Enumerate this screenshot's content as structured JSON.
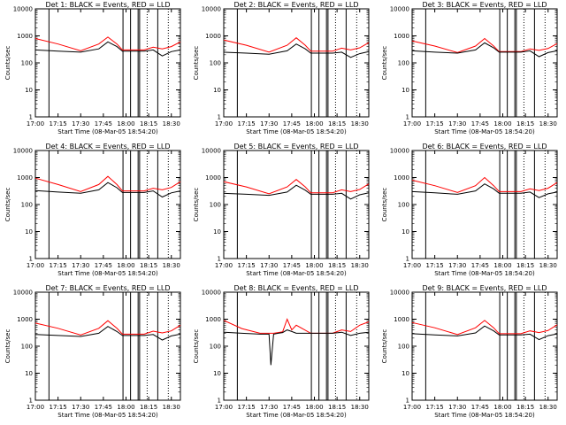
{
  "chart_data": [
    {
      "type": "line",
      "title": "Det 1: BLACK = Events, RED = LLD",
      "xlabel": "Start Time (08-Mar-05 18:54:20)",
      "ylabel": "Counts/sec",
      "y_scale": "log",
      "ylim": [
        1,
        10000
      ],
      "xlim": [
        "17:00",
        "18:36"
      ],
      "x_ticks": [
        "17:00",
        "17:15",
        "17:30",
        "17:45",
        "18:00",
        "18:15",
        "18:30"
      ],
      "y_ticks": [
        "1",
        "10",
        "100",
        "1000",
        "10000"
      ],
      "solid_markers": [
        "17:09",
        "17:58",
        "18:03",
        "18:08",
        "18:09",
        "18:21"
      ],
      "dotted_markers": [
        "18:14",
        "18:28"
      ],
      "x": [
        17.0,
        17.25,
        17.5,
        17.7,
        17.8,
        17.9,
        17.96,
        18.2,
        18.3,
        18.4,
        18.5,
        18.6
      ],
      "series": [
        {
          "name": "BLACK",
          "color": "#000000",
          "values": [
            300,
            270,
            250,
            330,
            600,
            400,
            270,
            270,
            300,
            180,
            260,
            300
          ]
        },
        {
          "name": "RED",
          "color": "#ff0000",
          "values": [
            800,
            500,
            280,
            500,
            900,
            500,
            300,
            300,
            380,
            330,
            400,
            600
          ]
        }
      ]
    },
    {
      "type": "line",
      "title": "Det 2: BLACK = Events, RED = LLD",
      "xlabel": "Start Time (08-Mar-05 18:54:20)",
      "ylabel": "Counts/sec",
      "y_scale": "log",
      "ylim": [
        1,
        10000
      ],
      "xlim": [
        "17:00",
        "18:36"
      ],
      "x_ticks": [
        "17:00",
        "17:15",
        "17:30",
        "17:45",
        "18:00",
        "18:15",
        "18:30"
      ],
      "y_ticks": [
        "1",
        "10",
        "100",
        "1000",
        "10000"
      ],
      "solid_markers": [
        "17:09",
        "17:58",
        "18:03",
        "18:08",
        "18:09",
        "18:21"
      ],
      "dotted_markers": [
        "18:14",
        "18:28"
      ],
      "x": [
        17.0,
        17.25,
        17.5,
        17.7,
        17.8,
        17.9,
        17.96,
        18.2,
        18.3,
        18.4,
        18.5,
        18.6
      ],
      "series": [
        {
          "name": "BLACK",
          "color": "#000000",
          "values": [
            250,
            230,
            210,
            280,
            500,
            330,
            230,
            230,
            250,
            160,
            220,
            260
          ]
        },
        {
          "name": "RED",
          "color": "#ff0000",
          "values": [
            700,
            450,
            250,
            450,
            850,
            450,
            270,
            270,
            350,
            300,
            360,
            560
          ]
        }
      ]
    },
    {
      "type": "line",
      "title": "Det 3: BLACK = Events, RED = LLD",
      "xlabel": "Start Time (08-Mar-05 18:54:20)",
      "ylabel": "Counts/sec",
      "y_scale": "log",
      "ylim": [
        1,
        10000
      ],
      "xlim": [
        "17:00",
        "18:36"
      ],
      "x_ticks": [
        "17:00",
        "17:15",
        "17:30",
        "17:45",
        "18:00",
        "18:15",
        "18:30"
      ],
      "y_ticks": [
        "1",
        "10",
        "100",
        "1000",
        "10000"
      ],
      "solid_markers": [
        "17:09",
        "17:58",
        "18:03",
        "18:08",
        "18:09",
        "18:21"
      ],
      "dotted_markers": [
        "18:14",
        "18:28"
      ],
      "x": [
        17.0,
        17.25,
        17.5,
        17.7,
        17.8,
        17.9,
        17.96,
        18.2,
        18.3,
        18.4,
        18.5,
        18.6
      ],
      "series": [
        {
          "name": "BLACK",
          "color": "#000000",
          "values": [
            280,
            250,
            230,
            300,
            550,
            360,
            250,
            250,
            280,
            170,
            240,
            280
          ]
        },
        {
          "name": "RED",
          "color": "#ff0000",
          "values": [
            650,
            420,
            240,
            420,
            800,
            420,
            260,
            260,
            330,
            290,
            340,
            520
          ]
        }
      ]
    },
    {
      "type": "line",
      "title": "Det 4: BLACK = Events, RED = LLD",
      "xlabel": "Start Time (08-Mar-05 18:54:20)",
      "ylabel": "Counts/sec",
      "y_scale": "log",
      "ylim": [
        1,
        10000
      ],
      "xlim": [
        "17:00",
        "18:36"
      ],
      "x_ticks": [
        "17:00",
        "17:15",
        "17:30",
        "17:45",
        "18:00",
        "18:15",
        "18:30"
      ],
      "y_ticks": [
        "1",
        "10",
        "100",
        "1000",
        "10000"
      ],
      "solid_markers": [
        "17:09",
        "17:58",
        "18:03",
        "18:08",
        "18:09",
        "18:21"
      ],
      "dotted_markers": [
        "18:14",
        "18:28"
      ],
      "x": [
        17.0,
        17.25,
        17.5,
        17.7,
        17.8,
        17.9,
        17.96,
        18.2,
        18.3,
        18.4,
        18.5,
        18.6
      ],
      "series": [
        {
          "name": "BLACK",
          "color": "#000000",
          "values": [
            330,
            290,
            260,
            350,
            650,
            420,
            280,
            280,
            320,
            190,
            270,
            320
          ]
        },
        {
          "name": "RED",
          "color": "#ff0000",
          "values": [
            950,
            550,
            300,
            550,
            1100,
            550,
            320,
            320,
            400,
            350,
            430,
            700
          ]
        }
      ]
    },
    {
      "type": "line",
      "title": "Det 5: BLACK = Events, RED = LLD",
      "xlabel": "Start Time (08-Mar-05 18:54:20)",
      "ylabel": "Counts/sec",
      "y_scale": "log",
      "ylim": [
        1,
        10000
      ],
      "xlim": [
        "17:00",
        "18:36"
      ],
      "x_ticks": [
        "17:00",
        "17:15",
        "17:30",
        "17:45",
        "18:00",
        "18:15",
        "18:30"
      ],
      "y_ticks": [
        "1",
        "10",
        "100",
        "1000",
        "10000"
      ],
      "solid_markers": [
        "17:09",
        "17:58",
        "18:03",
        "18:08",
        "18:09",
        "18:21"
      ],
      "dotted_markers": [
        "18:14",
        "18:28"
      ],
      "x": [
        17.0,
        17.25,
        17.5,
        17.7,
        17.8,
        17.9,
        17.96,
        18.2,
        18.3,
        18.4,
        18.5,
        18.6
      ],
      "series": [
        {
          "name": "BLACK",
          "color": "#000000",
          "values": [
            260,
            240,
            220,
            290,
            520,
            340,
            240,
            240,
            260,
            160,
            230,
            270
          ]
        },
        {
          "name": "RED",
          "color": "#ff0000",
          "values": [
            700,
            450,
            250,
            450,
            850,
            450,
            270,
            270,
            350,
            300,
            360,
            580
          ]
        }
      ]
    },
    {
      "type": "line",
      "title": "Det 6: BLACK = Events, RED = LLD",
      "xlabel": "Start Time (08-Mar-05 18:54:20)",
      "ylabel": "Counts/sec",
      "y_scale": "log",
      "ylim": [
        1,
        10000
      ],
      "xlim": [
        "17:00",
        "18:36"
      ],
      "x_ticks": [
        "17:00",
        "17:15",
        "17:30",
        "17:45",
        "18:00",
        "18:15",
        "18:30"
      ],
      "y_ticks": [
        "1",
        "10",
        "100",
        "1000",
        "10000"
      ],
      "solid_markers": [
        "17:09",
        "17:58",
        "18:03",
        "18:08",
        "18:09",
        "18:21"
      ],
      "dotted_markers": [
        "18:14",
        "18:28"
      ],
      "x": [
        17.0,
        17.25,
        17.5,
        17.7,
        17.8,
        17.9,
        17.96,
        18.2,
        18.3,
        18.4,
        18.5,
        18.6
      ],
      "series": [
        {
          "name": "BLACK",
          "color": "#000000",
          "values": [
            300,
            270,
            240,
            320,
            580,
            380,
            260,
            260,
            290,
            180,
            250,
            290
          ]
        },
        {
          "name": "RED",
          "color": "#ff0000",
          "values": [
            800,
            500,
            280,
            500,
            1000,
            500,
            300,
            300,
            380,
            330,
            400,
            650
          ]
        }
      ]
    },
    {
      "type": "line",
      "title": "Det 7: BLACK = Events, RED = LLD",
      "xlabel": "Start Time (08-Mar-05 18:54:20)",
      "ylabel": "Counts/sec",
      "y_scale": "log",
      "ylim": [
        1,
        10000
      ],
      "xlim": [
        "17:00",
        "18:36"
      ],
      "x_ticks": [
        "17:00",
        "17:15",
        "17:30",
        "17:45",
        "18:00",
        "18:15",
        "18:30"
      ],
      "y_ticks": [
        "1",
        "10",
        "100",
        "1000",
        "10000"
      ],
      "solid_markers": [
        "17:09",
        "17:58",
        "18:03",
        "18:08",
        "18:09",
        "18:21"
      ],
      "dotted_markers": [
        "18:14",
        "18:28"
      ],
      "x": [
        17.0,
        17.25,
        17.5,
        17.7,
        17.8,
        17.9,
        17.96,
        18.2,
        18.3,
        18.4,
        18.5,
        18.6
      ],
      "series": [
        {
          "name": "BLACK",
          "color": "#000000",
          "values": [
            270,
            250,
            230,
            300,
            540,
            350,
            250,
            250,
            270,
            170,
            240,
            280
          ]
        },
        {
          "name": "RED",
          "color": "#ff0000",
          "values": [
            720,
            460,
            260,
            460,
            880,
            460,
            280,
            280,
            360,
            310,
            370,
            600
          ]
        }
      ]
    },
    {
      "type": "line",
      "title": "Det 8: BLACK = Events, RED = LLD",
      "xlabel": "Start Time (08-Mar-05 18:54:20)",
      "ylabel": "Counts/sec",
      "y_scale": "log",
      "ylim": [
        1,
        10000
      ],
      "xlim": [
        "17:00",
        "18:36"
      ],
      "x_ticks": [
        "17:00",
        "17:15",
        "17:30",
        "17:45",
        "18:00",
        "18:15",
        "18:30"
      ],
      "y_ticks": [
        "1",
        "10",
        "100",
        "1000",
        "10000"
      ],
      "solid_markers": [
        "17:09",
        "17:58",
        "18:03",
        "18:08",
        "18:09",
        "18:21"
      ],
      "dotted_markers": [
        "18:14",
        "18:28"
      ],
      "x": [
        17.0,
        17.2,
        17.4,
        17.5,
        17.52,
        17.55,
        17.6,
        17.65,
        17.7,
        17.75,
        17.8,
        17.96,
        18.2,
        18.3,
        18.4,
        18.5,
        18.6
      ],
      "series": [
        {
          "name": "BLACK",
          "color": "#000000",
          "values": [
            330,
            300,
            280,
            280,
            20,
            280,
            300,
            320,
            400,
            350,
            300,
            300,
            300,
            330,
            250,
            300,
            330
          ]
        },
        {
          "name": "RED",
          "color": "#ff0000",
          "values": [
            900,
            450,
            300,
            300,
            300,
            300,
            320,
            340,
            1000,
            400,
            600,
            300,
            300,
            400,
            350,
            600,
            800
          ]
        }
      ]
    },
    {
      "type": "line",
      "title": "Det 9: BLACK = Events, RED = LLD",
      "xlabel": "Start Time (08-Mar-05 18:54:20)",
      "ylabel": "Counts/sec",
      "y_scale": "log",
      "ylim": [
        1,
        10000
      ],
      "xlim": [
        "17:00",
        "18:36"
      ],
      "x_ticks": [
        "17:00",
        "17:15",
        "17:30",
        "17:45",
        "18:00",
        "18:15",
        "18:30"
      ],
      "y_ticks": [
        "1",
        "10",
        "100",
        "1000",
        "10000"
      ],
      "solid_markers": [
        "17:09",
        "17:58",
        "18:03",
        "18:08",
        "18:09",
        "18:21"
      ],
      "dotted_markers": [
        "18:14",
        "18:28"
      ],
      "x": [
        17.0,
        17.25,
        17.5,
        17.7,
        17.8,
        17.9,
        17.96,
        18.2,
        18.3,
        18.4,
        18.5,
        18.6
      ],
      "series": [
        {
          "name": "BLACK",
          "color": "#000000",
          "values": [
            290,
            260,
            240,
            310,
            560,
            370,
            260,
            260,
            280,
            175,
            245,
            285
          ]
        },
        {
          "name": "RED",
          "color": "#ff0000",
          "values": [
            750,
            480,
            270,
            480,
            900,
            480,
            290,
            290,
            370,
            320,
            380,
            620
          ]
        }
      ]
    }
  ]
}
